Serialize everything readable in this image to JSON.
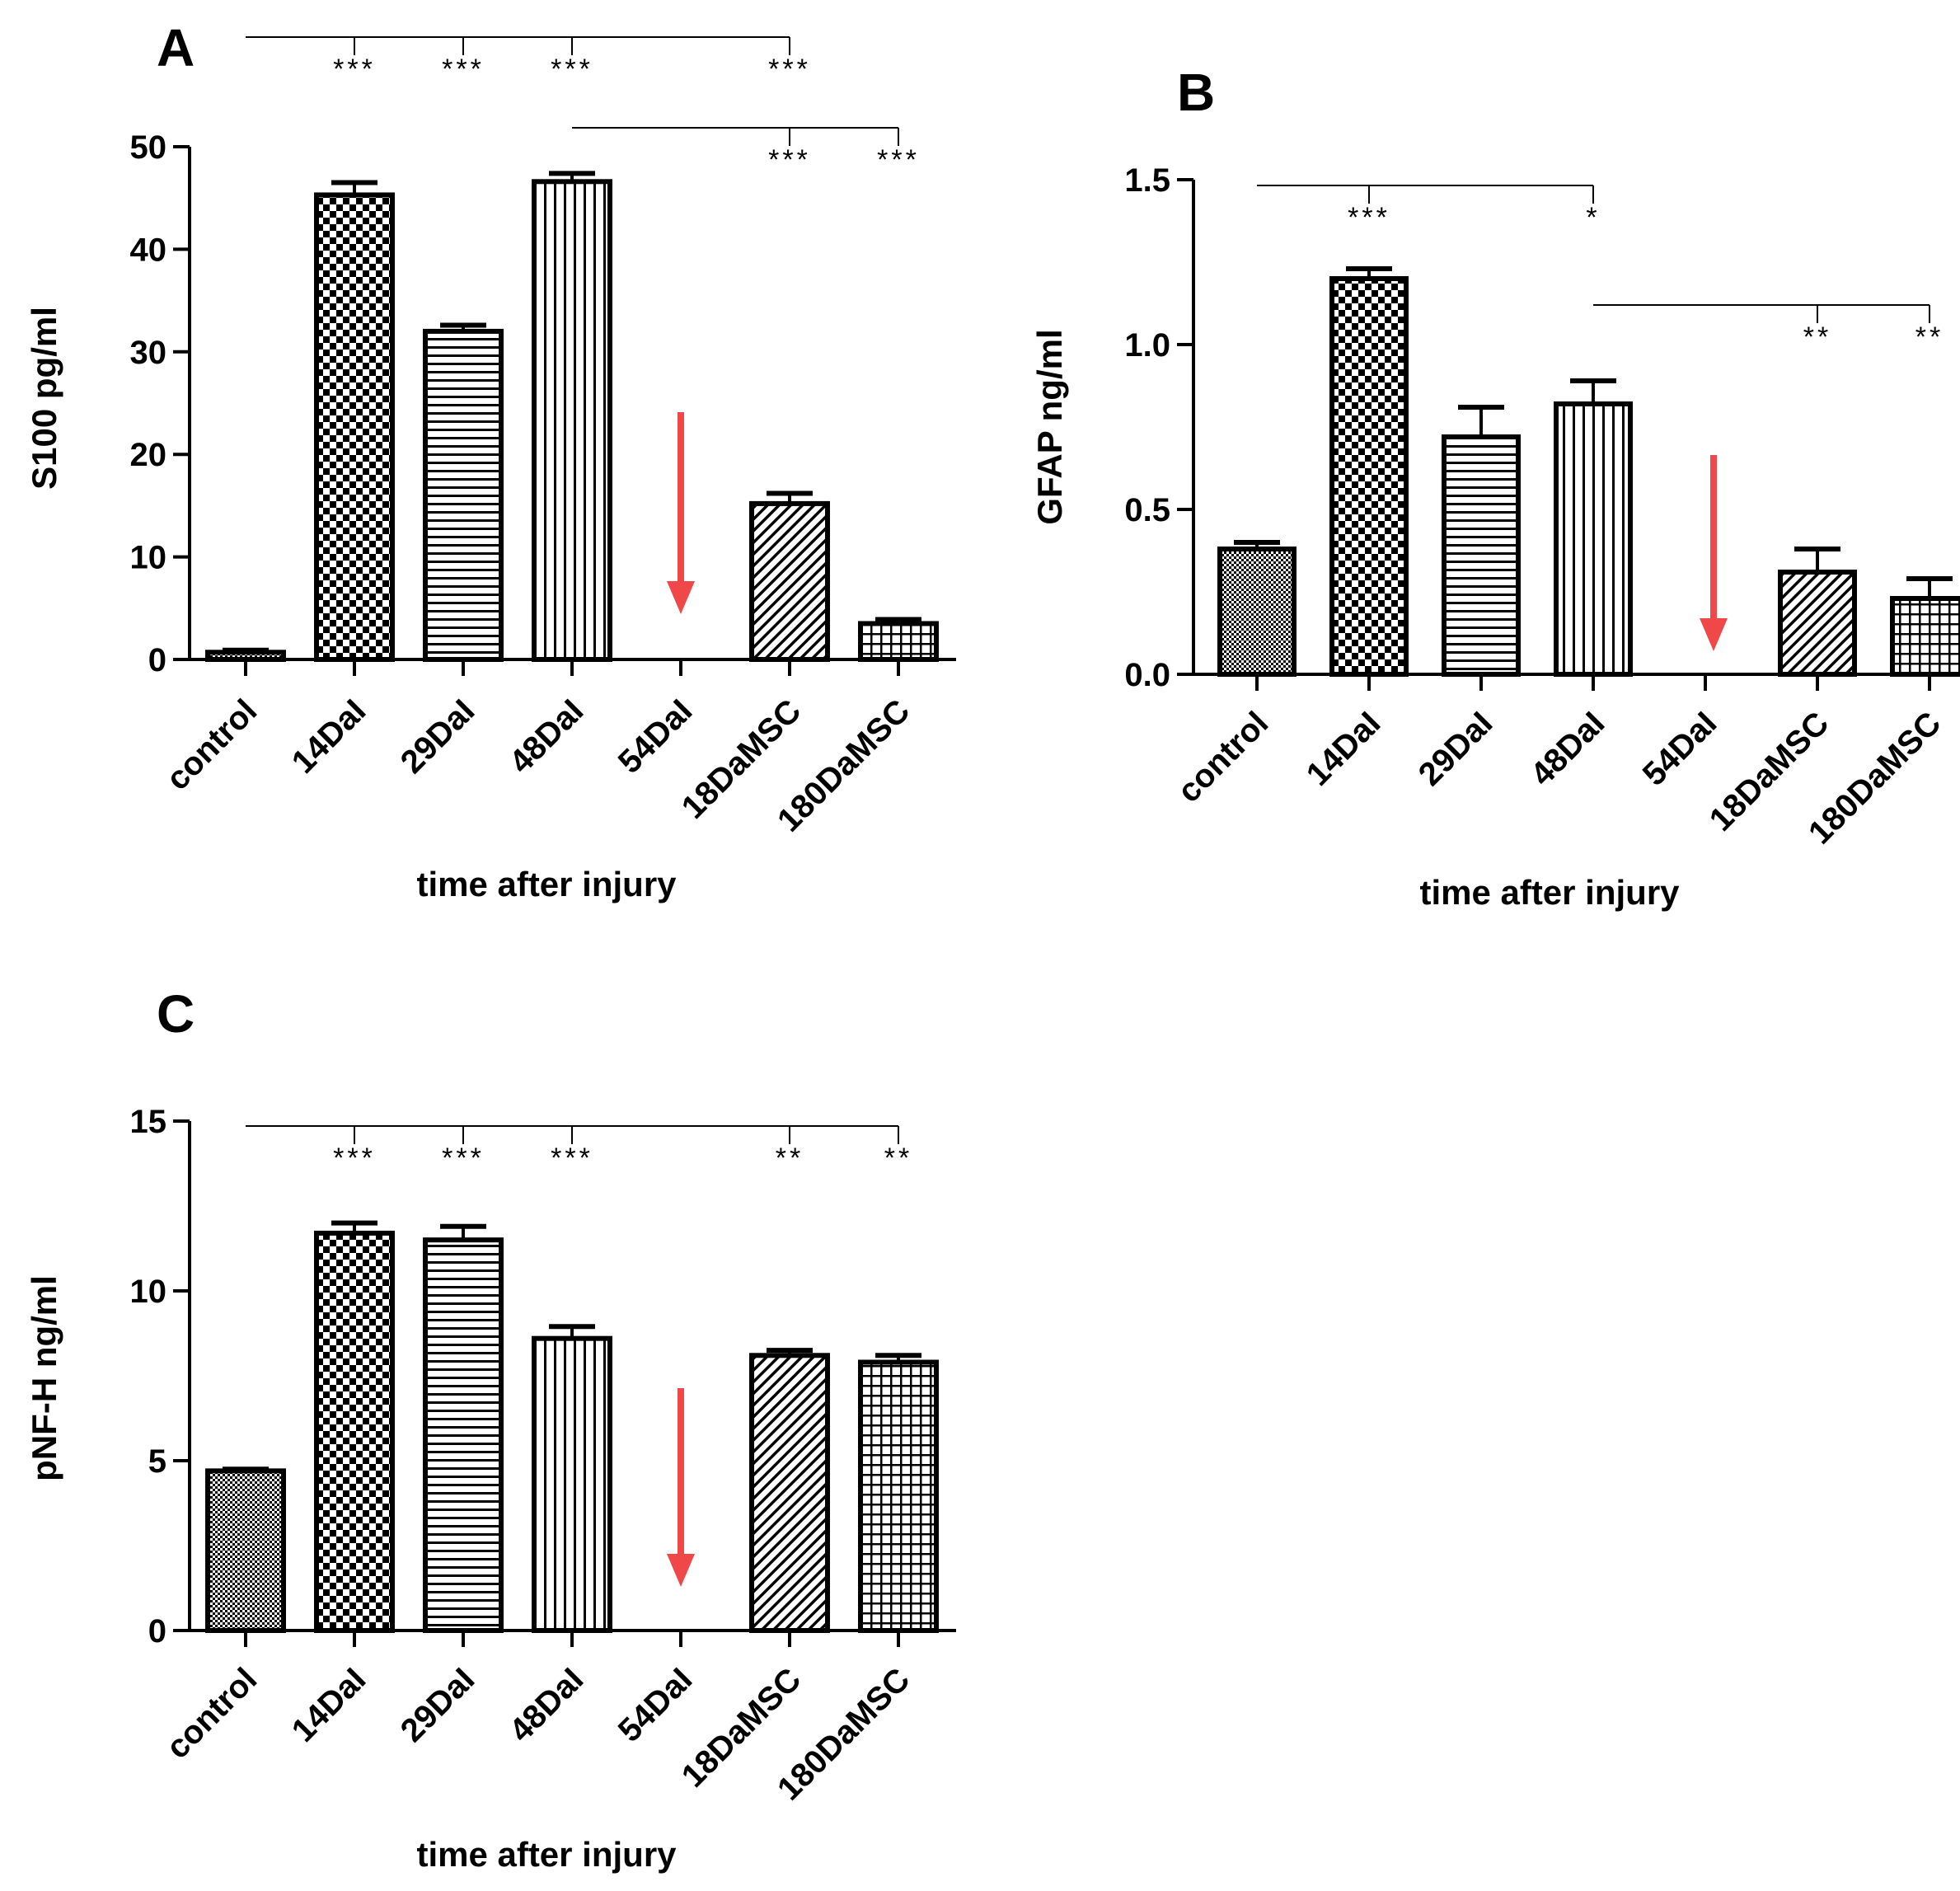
{
  "chart_data": [
    {
      "type": "bar",
      "panel": "A",
      "categories": [
        "control",
        "14DaI",
        "29DaI",
        "48DaI",
        "54DaI",
        "18DaMSC",
        "180DaMSC"
      ],
      "values": [
        0.7,
        45.3,
        32.0,
        46.6,
        0,
        15.2,
        3.5
      ],
      "errors": [
        0.2,
        1.2,
        0.6,
        0.8,
        0,
        1.0,
        0.4
      ],
      "patterns": [
        "dots",
        "checker",
        "hlines",
        "vlines",
        "none",
        "diag",
        "grid"
      ],
      "ylabel": "S100 pg/ml",
      "xlabel": "time after injury",
      "ylim": [
        0,
        50
      ],
      "yticks": [
        0,
        10,
        20,
        30,
        40,
        50
      ],
      "ytick_labels": [
        "0",
        "10",
        "20",
        "30",
        "40",
        "50"
      ],
      "arrow_at": "54DaI",
      "significance": [
        {
          "from": "control",
          "marks": [
            {
              "at": "14DaI",
              "label": "***"
            },
            {
              "at": "29DaI",
              "label": "***"
            },
            {
              "at": "48DaI",
              "label": "***"
            },
            {
              "at": "18DaMSC",
              "label": "***"
            }
          ]
        },
        {
          "from": "48DaI",
          "marks": [
            {
              "at": "18DaMSC",
              "label": "***"
            },
            {
              "at": "180DaMSC",
              "label": "***"
            }
          ]
        }
      ]
    },
    {
      "type": "bar",
      "panel": "B",
      "categories": [
        "control",
        "14DaI",
        "29DaI",
        "48DaI",
        "54DaI",
        "18DaMSC",
        "180DaMSC"
      ],
      "values": [
        0.38,
        1.2,
        0.72,
        0.82,
        0,
        0.31,
        0.23
      ],
      "errors": [
        0.02,
        0.03,
        0.09,
        0.07,
        0,
        0.07,
        0.06
      ],
      "patterns": [
        "dots",
        "checker",
        "hlines",
        "vlines",
        "none",
        "diag",
        "grid"
      ],
      "ylabel": "GFAP ng/ml",
      "xlabel": "time after injury",
      "ylim": [
        0,
        1.5
      ],
      "yticks": [
        0,
        0.5,
        1.0,
        1.5
      ],
      "ytick_labels": [
        "0.0",
        "0.5",
        "1.0",
        "1.5"
      ],
      "arrow_at": "54DaI",
      "significance": [
        {
          "from": "control",
          "marks": [
            {
              "at": "14DaI",
              "label": "***"
            },
            {
              "at": "48DaI",
              "label": "*"
            }
          ]
        },
        {
          "from": "48DaI",
          "marks": [
            {
              "at": "18DaMSC",
              "label": "**"
            },
            {
              "at": "180DaMSC",
              "label": "**"
            }
          ]
        }
      ]
    },
    {
      "type": "bar",
      "panel": "C",
      "categories": [
        "control",
        "14DaI",
        "29DaI",
        "48DaI",
        "54DaI",
        "18DaMSC",
        "180DaMSC"
      ],
      "values": [
        4.7,
        11.7,
        11.5,
        8.6,
        0,
        8.1,
        7.9
      ],
      "errors": [
        0.05,
        0.3,
        0.4,
        0.35,
        0,
        0.15,
        0.2
      ],
      "patterns": [
        "dots",
        "checker",
        "hlines",
        "vlines",
        "none",
        "diag",
        "grid"
      ],
      "ylabel": "pNF-H ng/ml",
      "xlabel": "time after injury",
      "ylim": [
        0,
        15
      ],
      "yticks": [
        0,
        5,
        10,
        15
      ],
      "ytick_labels": [
        "0",
        "5",
        "10",
        "15"
      ],
      "arrow_at": "54DaI",
      "significance": [
        {
          "from": "control",
          "marks": [
            {
              "at": "14DaI",
              "label": "***"
            },
            {
              "at": "29DaI",
              "label": "***"
            },
            {
              "at": "48DaI",
              "label": "***"
            },
            {
              "at": "18DaMSC",
              "label": "**"
            },
            {
              "at": "180DaMSC",
              "label": "**"
            }
          ]
        }
      ]
    }
  ],
  "colors": {
    "arrow": "#f04848",
    "ink": "#000000",
    "background": "#ffffff"
  }
}
